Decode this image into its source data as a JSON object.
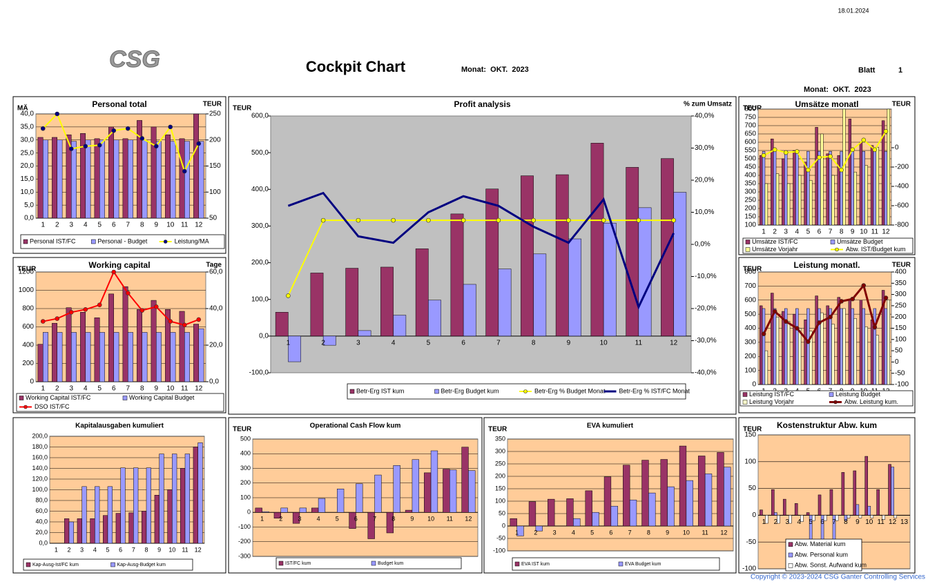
{
  "header": {
    "date": "18.01.2024",
    "logo": "CSG",
    "title": "Cockpit Chart",
    "month": "Monat:  OKT.  2023",
    "sheet_label": "Blatt",
    "sheet": "1",
    "copyright": "Copyright © 2023-2024 CSG Ganter Controlling Services"
  },
  "chart_data": [
    {
      "type": "bar",
      "title": "Personal total",
      "left_label": "MÄ",
      "right_label": "TEUR",
      "plot_color": "#ffcc99",
      "grid": true,
      "categories": [
        "1",
        "2",
        "3",
        "4",
        "5",
        "6",
        "7",
        "8",
        "9",
        "10",
        "11",
        "12"
      ],
      "ylim": [
        0,
        40
      ],
      "yticks": [
        {
          "value": 0,
          "label": "0,0"
        },
        {
          "value": 5,
          "label": "5,0"
        },
        {
          "value": 10,
          "label": "10,0"
        },
        {
          "value": 15,
          "label": "15,0"
        },
        {
          "value": 20,
          "label": "20,0"
        },
        {
          "value": 25,
          "label": "25,0"
        },
        {
          "value": 30,
          "label": "30,0"
        },
        {
          "value": 35,
          "label": "35,0"
        },
        {
          "value": 40,
          "label": "40,0"
        }
      ],
      "y2lim": [
        50,
        250
      ],
      "y2ticks": [
        50,
        100,
        150,
        200,
        250
      ],
      "series": [
        {
          "name": "Personal IST/FC",
          "type": "bar",
          "color": "#993366",
          "values": [
            31,
            31,
            32,
            32.5,
            30.5,
            35,
            30.5,
            37.5,
            35,
            32,
            30.5,
            40
          ]
        },
        {
          "name": "Personal - Budget",
          "type": "bar",
          "color": "#9999ff",
          "values": [
            30,
            30,
            29.5,
            30,
            30,
            30,
            30,
            30,
            29.5,
            29.5,
            29.5,
            29.5
          ]
        },
        {
          "name": "Leistung/MA",
          "type": "line",
          "axis": "y2",
          "color": "#ffff00",
          "marker_color": "#000080",
          "values": [
            222,
            250,
            183,
            188,
            190,
            218,
            222,
            203,
            188,
            225,
            140,
            193
          ]
        }
      ]
    },
    {
      "type": "bar",
      "title": "Working capital",
      "left_label": "TEUR",
      "right_label": "Tage",
      "plot_color": "#ffcc99",
      "grid": true,
      "categories": [
        "1",
        "2",
        "3",
        "4",
        "5",
        "6",
        "7",
        "8",
        "9",
        "10",
        "11",
        "12"
      ],
      "ylim": [
        0,
        1200
      ],
      "yticks": [
        0,
        200,
        400,
        600,
        800,
        1000,
        1200
      ],
      "y2lim": [
        0,
        60
      ],
      "y2ticks": [
        {
          "value": 0,
          "label": "0,0"
        },
        {
          "value": 20,
          "label": "20,0"
        },
        {
          "value": 40,
          "label": "40,0"
        },
        {
          "value": 60,
          "label": "60,0"
        }
      ],
      "series": [
        {
          "name": "Working Capital IST/FC",
          "type": "bar",
          "color": "#993366",
          "values": [
            410,
            640,
            810,
            760,
            700,
            960,
            1040,
            790,
            890,
            790,
            770,
            630
          ]
        },
        {
          "name": "Working Capital Budget",
          "type": "bar",
          "color": "#9999ff",
          "values": [
            540,
            540,
            540,
            540,
            540,
            540,
            540,
            540,
            540,
            540,
            540,
            580
          ]
        },
        {
          "name": "DSO IST/FC",
          "type": "line",
          "axis": "y2",
          "color": "#ff0000",
          "marker_color": "#ff0000",
          "values": [
            33,
            34.5,
            38,
            39.5,
            42,
            60,
            48.5,
            39,
            41,
            33,
            31,
            34
          ]
        }
      ]
    },
    {
      "type": "bar",
      "title": "Profit analysis",
      "left_label": "TEUR",
      "right_label": "% zum Umsatz",
      "plot_color": "#c0c0c0",
      "grid": false,
      "categories": [
        "1",
        "2",
        "3",
        "4",
        "5",
        "6",
        "7",
        "8",
        "9",
        "10",
        "11",
        "12"
      ],
      "ylim": [
        -100,
        600
      ],
      "yticks": [
        {
          "value": -100,
          "label": "-100,0"
        },
        {
          "value": 0,
          "label": "0,0"
        },
        {
          "value": 100,
          "label": "100,0"
        },
        {
          "value": 200,
          "label": "200,0"
        },
        {
          "value": 300,
          "label": "300,0"
        },
        {
          "value": 400,
          "label": "400,0"
        },
        {
          "value": 500,
          "label": "500,0"
        },
        {
          "value": 600,
          "label": "600,0"
        }
      ],
      "y2lim": [
        -40,
        40
      ],
      "y2ticks": [
        {
          "value": -40,
          "label": "-40,0%"
        },
        {
          "value": -30,
          "label": "-30,0%"
        },
        {
          "value": -20,
          "label": "-20,0%"
        },
        {
          "value": -10,
          "label": "-10,0%"
        },
        {
          "value": 0,
          "label": "0,0%"
        },
        {
          "value": 10,
          "label": "10,0%"
        },
        {
          "value": 20,
          "label": "20,0%"
        },
        {
          "value": 30,
          "label": "30,0%"
        },
        {
          "value": 40,
          "label": "40,0%"
        }
      ],
      "series": [
        {
          "name": "Betr-Erg  IST kum",
          "type": "bar",
          "color": "#993366",
          "values": [
            65,
            172,
            185,
            188,
            238,
            333,
            401,
            437,
            440,
            526,
            460,
            484
          ]
        },
        {
          "name": "Betr-Erg  Budget kum",
          "type": "bar",
          "color": "#9999ff",
          "values": [
            -70,
            -25,
            15,
            57,
            98,
            141,
            183,
            224,
            265,
            308,
            350,
            392
          ]
        },
        {
          "name": "Betr-Erg % Budget Monat",
          "type": "line",
          "axis": "y2",
          "color": "#ffff00",
          "marker_color": "#ffff00",
          "values": [
            -16,
            7.5,
            7.5,
            7.5,
            7.5,
            7.5,
            7.5,
            7.5,
            7.5,
            7.5,
            7.5,
            7.5
          ]
        },
        {
          "name": "Betr-Erg % IST/FC Monat",
          "type": "line",
          "axis": "y2",
          "color": "#000080",
          "width": 3,
          "values": [
            12,
            16,
            2.5,
            0.5,
            10,
            15,
            12,
            5.5,
            0.5,
            14,
            -19.5,
            3.5
          ]
        }
      ]
    },
    {
      "type": "bar",
      "title": "Umsätze monatl",
      "left_label": "TEUR",
      "right_label": "TEUR",
      "plot_color": "#ffcc99",
      "grid": true,
      "categories": [
        "1",
        "2",
        "3",
        "4",
        "5",
        "6",
        "7",
        "8",
        "9",
        "10",
        "11",
        "12"
      ],
      "ylim": [
        100,
        800
      ],
      "yticks": [
        100,
        150,
        200,
        250,
        300,
        350,
        400,
        450,
        500,
        550,
        600,
        650,
        700,
        750,
        800
      ],
      "y2lim": [
        -800,
        400
      ],
      "y2ticks": [
        -800,
        -600,
        -400,
        -200,
        0
      ],
      "series": [
        {
          "name": "Umsätze IST/FC",
          "type": "bar",
          "color": "#993366",
          "values": [
            520,
            620,
            500,
            550,
            480,
            690,
            530,
            520,
            740,
            600,
            580,
            730
          ]
        },
        {
          "name": "Umsätze Budget",
          "type": "bar",
          "color": "#9999ff",
          "values": [
            545,
            545,
            545,
            545,
            545,
            545,
            545,
            545,
            545,
            545,
            545,
            545
          ]
        },
        {
          "name": "Umsätze Vorjahr",
          "type": "bar",
          "color": "#ffff99",
          "values": [
            350,
            410,
            350,
            400,
            370,
            650,
            400,
            800,
            420,
            460,
            570,
            800
          ]
        },
        {
          "name": "Abw. IST/Budget kum",
          "type": "line",
          "axis": "y2",
          "color": "#ffff00",
          "marker_color": "#ffff00",
          "values": [
            -80,
            -20,
            -50,
            -40,
            -230,
            -100,
            -90,
            -230,
            -20,
            80,
            -20,
            170
          ]
        }
      ]
    },
    {
      "type": "bar",
      "title": "Leistung monatl.",
      "left_label": "TEUR",
      "right_label": "TEUR",
      "plot_color": "#ffcc99",
      "grid": true,
      "categories": [
        "1",
        "2",
        "3",
        "4",
        "5",
        "6",
        "7",
        "8",
        "9",
        "10",
        "11",
        "12"
      ],
      "ylim": [
        0,
        800
      ],
      "yticks": [
        0,
        100,
        200,
        300,
        400,
        500,
        600,
        700,
        800
      ],
      "y2lim": [
        -100,
        400
      ],
      "y2ticks": [
        -100,
        -50,
        0,
        50,
        100,
        150,
        200,
        250,
        300,
        350,
        400
      ],
      "series": [
        {
          "name": "Leistung  IST/FC",
          "type": "bar",
          "color": "#993366",
          "values": [
            560,
            650,
            520,
            500,
            460,
            630,
            560,
            620,
            600,
            600,
            460,
            670
          ]
        },
        {
          "name": "Leistung  Budget",
          "type": "bar",
          "color": "#9999ff",
          "values": [
            540,
            540,
            540,
            540,
            540,
            540,
            540,
            540,
            540,
            540,
            540,
            540
          ]
        },
        {
          "name": "Leistung Vorjahr",
          "type": "bar",
          "color": "#ffffcc",
          "values": [
            240,
            480,
            450,
            400,
            380,
            510,
            430,
            540,
            470,
            410,
            350,
            600
          ]
        },
        {
          "name": "Abw. Leistung kum.",
          "type": "line",
          "axis": "y2",
          "color": "#800000",
          "marker_color": "#800000",
          "width": 3,
          "values": [
            125,
            225,
            180,
            150,
            90,
            175,
            200,
            270,
            280,
            340,
            155,
            285
          ]
        }
      ]
    },
    {
      "type": "bar",
      "title": "Kapitalausgaben kumuliert",
      "small": true,
      "plot_color": "#ffcc99",
      "grid": true,
      "categories": [
        "1",
        "2",
        "3",
        "4",
        "5",
        "6",
        "7",
        "8",
        "9",
        "10",
        "11",
        "12"
      ],
      "ylim": [
        0,
        200
      ],
      "yticks": [
        {
          "value": 0,
          "label": "0,0"
        },
        {
          "value": 20,
          "label": "20,0"
        },
        {
          "value": 40,
          "label": "40,0"
        },
        {
          "value": 60,
          "label": "60,0"
        },
        {
          "value": 80,
          "label": "80,0"
        },
        {
          "value": 100,
          "label": "100,0"
        },
        {
          "value": 120,
          "label": "120,0"
        },
        {
          "value": 140,
          "label": "140,0"
        },
        {
          "value": 160,
          "label": "160,0"
        },
        {
          "value": 180,
          "label": "180,0"
        },
        {
          "value": 200,
          "label": "200,0"
        }
      ],
      "series": [
        {
          "name": "Kap-Ausg-Ist/FC kum",
          "type": "bar",
          "color": "#993366",
          "values": [
            0,
            46,
            46,
            46,
            52,
            56,
            57,
            60,
            90,
            100,
            140,
            180
          ]
        },
        {
          "name": "Kap-Ausg-Budget kum",
          "type": "bar",
          "color": "#9999ff",
          "values": [
            0,
            40,
            106,
            106,
            106,
            141,
            141,
            141,
            167,
            167,
            167,
            188
          ]
        }
      ]
    },
    {
      "type": "bar",
      "title": "Operational Cash Flow kum",
      "left_label": "TEUR",
      "small": true,
      "plot_color": "#ffcc99",
      "grid": true,
      "categories": [
        "1",
        "2",
        "3",
        "4",
        "5",
        "6",
        "7",
        "8",
        "9",
        "10",
        "11",
        "12"
      ],
      "ylim": [
        -300,
        500
      ],
      "yticks": [
        -300,
        -200,
        -100,
        0,
        100,
        200,
        300,
        400,
        500
      ],
      "series": [
        {
          "name": "IST/FC kum",
          "type": "bar",
          "color": "#993366",
          "values": [
            30,
            -40,
            -75,
            30,
            0,
            -110,
            -180,
            -140,
            15,
            270,
            295,
            445
          ]
        },
        {
          "name": "Budget  kum",
          "type": "bar",
          "color": "#9999ff",
          "values": [
            5,
            30,
            30,
            95,
            160,
            195,
            255,
            320,
            360,
            420,
            290,
            285
          ]
        }
      ]
    },
    {
      "type": "bar",
      "title": "EVA kumuliert",
      "left_label": "TEUR",
      "small": true,
      "plot_color": "#ffcc99",
      "grid": true,
      "categories": [
        "1",
        "2",
        "3",
        "4",
        "5",
        "6",
        "7",
        "8",
        "9",
        "10",
        "11",
        "12"
      ],
      "ylim": [
        -100,
        350
      ],
      "yticks": [
        -100,
        -50,
        0,
        50,
        100,
        150,
        200,
        250,
        300,
        350
      ],
      "series": [
        {
          "name": "EVA  IST kum",
          "type": "bar",
          "color": "#993366",
          "values": [
            30,
            98,
            108,
            110,
            142,
            198,
            245,
            265,
            268,
            322,
            282,
            296
          ]
        },
        {
          "name": "EVA Budget kum",
          "type": "bar",
          "color": "#9999ff",
          "values": [
            -40,
            -20,
            0,
            30,
            55,
            80,
            105,
            133,
            158,
            183,
            210,
            237
          ]
        }
      ]
    },
    {
      "type": "bar",
      "title": "Kostenstruktur  Abw. kum",
      "left_label": "TEUR",
      "plot_color": "#ffcc99",
      "grid": true,
      "categories": [
        "1",
        "2",
        "3",
        "4",
        "5",
        "6",
        "7",
        "8",
        "9",
        "10",
        "11",
        "12",
        "13"
      ],
      "ylim": [
        -100,
        150
      ],
      "yticks": [
        -100,
        -50,
        0,
        50,
        100,
        150
      ],
      "series": [
        {
          "name": "Abw. Material  kum",
          "type": "bar",
          "color": "#993366",
          "values": [
            10,
            48,
            30,
            22,
            5,
            38,
            48,
            80,
            83,
            110,
            48,
            95,
            null
          ]
        },
        {
          "name": "Abw. Personal kum",
          "type": "bar",
          "color": "#9999ff",
          "values": [
            0,
            5,
            0,
            0,
            -55,
            -55,
            -75,
            -10,
            20,
            17,
            0,
            90,
            null
          ]
        },
        {
          "name": "Abw. Sonst. Aufwand kum",
          "type": "bar",
          "color": "#ffffff",
          "values": [
            -15,
            -15,
            -15,
            -12,
            -10,
            -10,
            -10,
            -5,
            -5,
            -5,
            -8,
            -5,
            null
          ]
        }
      ]
    }
  ]
}
